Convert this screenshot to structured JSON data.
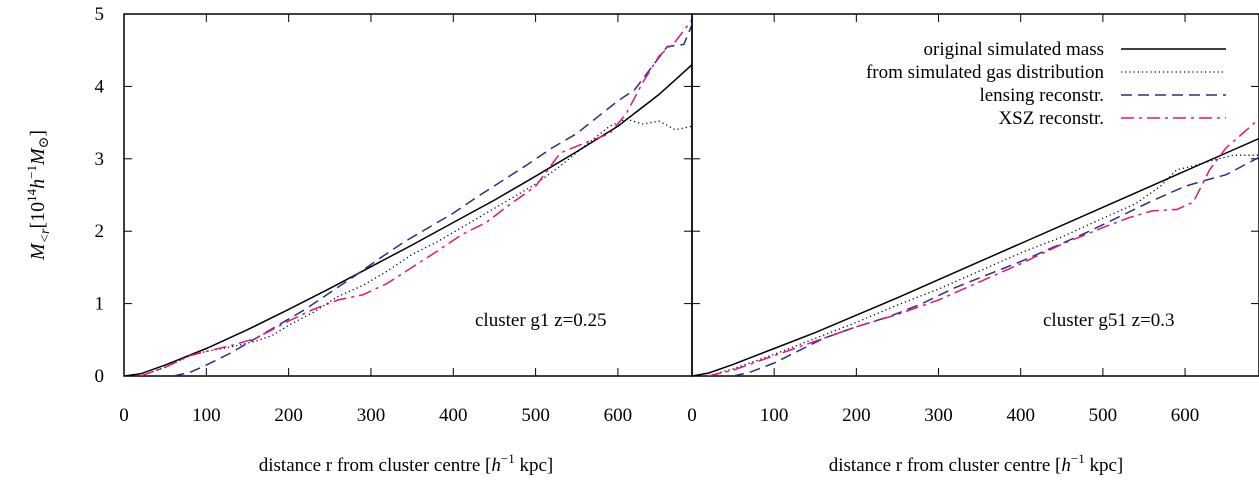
{
  "chart_data": [
    {
      "type": "line",
      "xlabel": "distance r from cluster centre [h⁻¹ kpc]",
      "xlabel_parts": {
        "pre": "distance r from cluster centre [",
        "h": "h",
        "exp": "−1",
        "post": " kpc]"
      },
      "ylabel": "M<r[10¹⁴h⁻¹M⊙]",
      "xlim": [
        0,
        690
      ],
      "ylim": [
        0,
        5
      ],
      "xticks": [
        0,
        100,
        200,
        300,
        400,
        500,
        600
      ],
      "yticks": [
        0,
        1,
        2,
        3,
        4,
        5
      ],
      "annotation": "cluster g1 z=0.25",
      "grid": false,
      "series": [
        {
          "name": "original simulated mass",
          "color": "#000000",
          "style": "solid",
          "x": [
            0,
            20,
            50,
            100,
            150,
            200,
            250,
            300,
            350,
            400,
            450,
            500,
            550,
            600,
            650,
            690
          ],
          "y": [
            0,
            0.03,
            0.15,
            0.38,
            0.64,
            0.92,
            1.21,
            1.51,
            1.81,
            2.12,
            2.43,
            2.76,
            3.1,
            3.45,
            3.89,
            4.3
          ]
        },
        {
          "name": "from simulated gas distribution",
          "color": "#000000",
          "style": "dotted",
          "x": [
            20,
            50,
            80,
            100,
            130,
            160,
            180,
            200,
            230,
            260,
            290,
            320,
            350,
            380,
            410,
            440,
            470,
            500,
            530,
            560,
            590,
            610,
            630,
            650,
            670,
            690
          ],
          "y": [
            0.0,
            0.12,
            0.28,
            0.34,
            0.4,
            0.48,
            0.56,
            0.7,
            0.88,
            1.1,
            1.25,
            1.45,
            1.68,
            1.85,
            2.05,
            2.25,
            2.45,
            2.65,
            2.9,
            3.18,
            3.45,
            3.55,
            3.48,
            3.52,
            3.4,
            3.45
          ]
        },
        {
          "name": "lensing reconstr.",
          "color": "#2b2f8a",
          "style": "dashed",
          "x": [
            60,
            80,
            100,
            130,
            160,
            190,
            220,
            250,
            280,
            310,
            340,
            370,
            400,
            430,
            460,
            490,
            520,
            550,
            580,
            600,
            620,
            640,
            660,
            680,
            690
          ],
          "y": [
            0.0,
            0.05,
            0.15,
            0.32,
            0.52,
            0.72,
            0.92,
            1.15,
            1.38,
            1.62,
            1.85,
            2.05,
            2.25,
            2.48,
            2.7,
            2.92,
            3.15,
            3.35,
            3.62,
            3.8,
            3.95,
            4.25,
            4.55,
            4.58,
            4.85
          ]
        },
        {
          "name": "XSZ reconstr.",
          "color": "#e0157f",
          "style": "dashdot",
          "x": [
            20,
            50,
            80,
            100,
            130,
            160,
            200,
            230,
            260,
            290,
            320,
            350,
            380,
            410,
            440,
            470,
            500,
            530,
            560,
            590,
            610,
            630,
            650,
            670,
            690
          ],
          "y": [
            0.0,
            0.12,
            0.28,
            0.34,
            0.42,
            0.52,
            0.76,
            0.92,
            1.05,
            1.12,
            1.28,
            1.5,
            1.72,
            1.95,
            2.12,
            2.38,
            2.62,
            3.08,
            3.22,
            3.35,
            3.62,
            4.05,
            4.42,
            4.62,
            4.92
          ]
        }
      ]
    },
    {
      "type": "line",
      "xlabel": "distance r from cluster centre [h⁻¹ kpc]",
      "xlim": [
        0,
        690
      ],
      "ylim": [
        0,
        5
      ],
      "xticks": [
        0,
        100,
        200,
        300,
        400,
        500,
        600
      ],
      "annotation": "cluster g51 z=0.3",
      "grid": false,
      "legend": "top-right",
      "series": [
        {
          "name": "original simulated mass",
          "color": "#000000",
          "style": "solid",
          "x": [
            0,
            20,
            50,
            100,
            150,
            200,
            250,
            300,
            350,
            400,
            450,
            500,
            550,
            600,
            650,
            690
          ],
          "y": [
            0,
            0.04,
            0.16,
            0.38,
            0.6,
            0.84,
            1.08,
            1.33,
            1.58,
            1.83,
            2.08,
            2.33,
            2.58,
            2.83,
            3.08,
            3.28
          ]
        },
        {
          "name": "from simulated gas distribution",
          "color": "#000000",
          "style": "dotted",
          "x": [
            20,
            50,
            100,
            150,
            200,
            250,
            300,
            350,
            400,
            450,
            500,
            540,
            570,
            590,
            610,
            640,
            660,
            690
          ],
          "y": [
            0.0,
            0.1,
            0.3,
            0.52,
            0.74,
            0.98,
            1.2,
            1.45,
            1.7,
            1.92,
            2.18,
            2.38,
            2.62,
            2.85,
            2.9,
            3.0,
            3.05,
            3.05
          ]
        },
        {
          "name": "lensing reconstr.",
          "color": "#2b2f8a",
          "style": "dashed",
          "x": [
            50,
            70,
            100,
            130,
            160,
            200,
            240,
            280,
            320,
            360,
            400,
            440,
            480,
            520,
            560,
            600,
            630,
            650,
            670,
            690
          ],
          "y": [
            0.0,
            0.05,
            0.18,
            0.35,
            0.52,
            0.68,
            0.82,
            1.0,
            1.22,
            1.4,
            1.58,
            1.78,
            1.98,
            2.2,
            2.42,
            2.62,
            2.72,
            2.78,
            2.9,
            3.02
          ]
        },
        {
          "name": "XSZ reconstr.",
          "color": "#e0157f",
          "style": "dashdot",
          "x": [
            20,
            50,
            80,
            110,
            150,
            200,
            250,
            300,
            350,
            400,
            450,
            500,
            530,
            560,
            590,
            610,
            630,
            650,
            670,
            690
          ],
          "y": [
            0.0,
            0.08,
            0.2,
            0.32,
            0.48,
            0.68,
            0.85,
            1.05,
            1.3,
            1.55,
            1.82,
            2.05,
            2.18,
            2.28,
            2.3,
            2.4,
            2.85,
            3.15,
            3.35,
            3.55
          ]
        }
      ]
    }
  ]
}
